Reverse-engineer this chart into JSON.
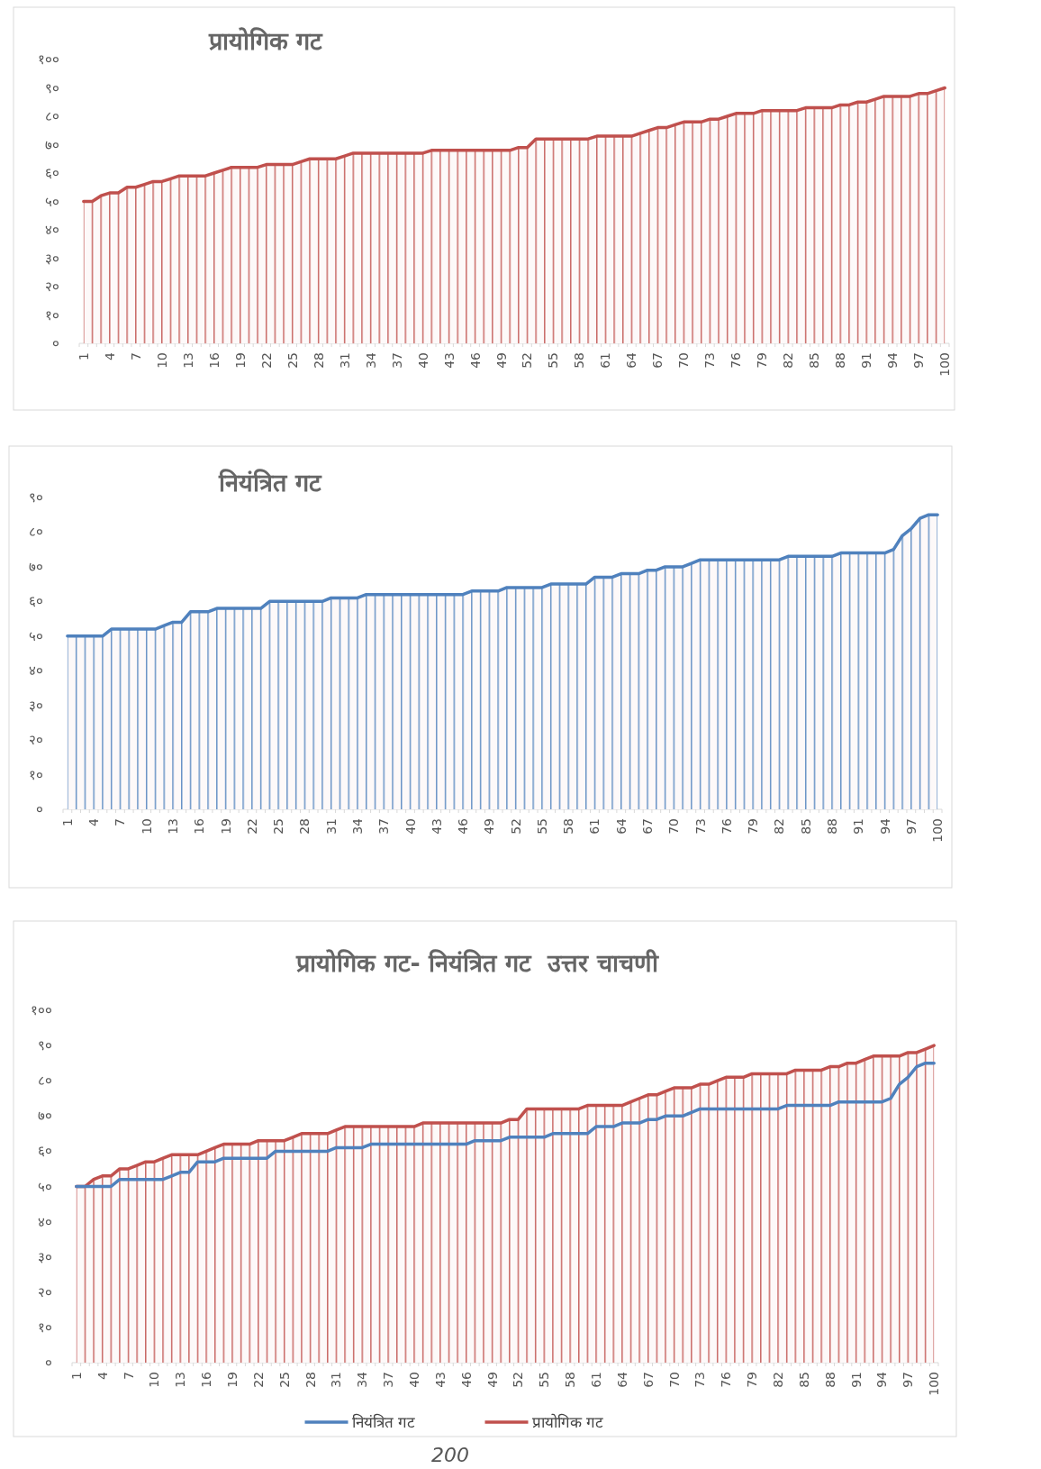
{
  "chart_data": [
    {
      "type": "area",
      "title": "प्रायोगिक गट",
      "categories": [
        "1",
        null,
        null,
        "4",
        null,
        null,
        "7",
        null,
        null,
        "10",
        null,
        null,
        "13",
        null,
        null,
        "16",
        null,
        null,
        "19",
        null,
        null,
        "22",
        null,
        null,
        "25",
        null,
        null,
        "28",
        null,
        null,
        "31",
        null,
        null,
        "34",
        null,
        null,
        "37",
        null,
        null,
        "40",
        null,
        null,
        "43",
        null,
        null,
        "46",
        null,
        null,
        "49",
        null,
        null,
        "52",
        null,
        null,
        "55",
        null,
        null,
        "58",
        null,
        null,
        "61",
        null,
        null,
        "64",
        null,
        null,
        "67",
        null,
        null,
        "70",
        null,
        null,
        "73",
        null,
        null,
        "76",
        null,
        null,
        "79",
        null,
        null,
        "82",
        null,
        null,
        "85",
        null,
        null,
        "88",
        null,
        null,
        "91",
        null,
        null,
        "94",
        null,
        null,
        "97",
        null,
        null,
        "100"
      ],
      "series": [
        {
          "color": "#c0504d",
          "values": [
            50,
            50,
            52,
            53,
            53,
            55,
            55,
            56,
            57,
            57,
            58,
            59,
            59,
            59,
            59,
            60,
            61,
            62,
            62,
            62,
            62,
            63,
            63,
            63,
            63,
            64,
            65,
            65,
            65,
            65,
            66,
            67,
            67,
            67,
            67,
            67,
            67,
            67,
            67,
            67,
            68,
            68,
            68,
            68,
            68,
            68,
            68,
            68,
            68,
            68,
            69,
            69,
            72,
            72,
            72,
            72,
            72,
            72,
            72,
            73,
            73,
            73,
            73,
            73,
            74,
            75,
            76,
            76,
            77,
            78,
            78,
            78,
            79,
            79,
            80,
            81,
            81,
            81,
            82,
            82,
            82,
            82,
            82,
            83,
            83,
            83,
            83,
            84,
            84,
            85,
            85,
            86,
            87,
            87,
            87,
            87,
            88,
            88,
            89,
            90
          ]
        }
      ],
      "ylim": [
        0,
        100
      ],
      "yticks": [
        {
          "value": 0,
          "label": "०"
        },
        {
          "value": 10,
          "label": "१०"
        },
        {
          "value": 20,
          "label": "२०"
        },
        {
          "value": 30,
          "label": "३०"
        },
        {
          "value": 40,
          "label": "४०"
        },
        {
          "value": 50,
          "label": "५०"
        },
        {
          "value": 60,
          "label": "६०"
        },
        {
          "value": 70,
          "label": "७०"
        },
        {
          "value": 80,
          "label": "८०"
        },
        {
          "value": 90,
          "label": "९०"
        },
        {
          "value": 100,
          "label": "१००"
        }
      ],
      "grid": false,
      "legend": false
    },
    {
      "type": "area",
      "title": "नियंत्रित गट",
      "categories": [
        "1",
        null,
        null,
        "4",
        null,
        null,
        "7",
        null,
        null,
        "10",
        null,
        null,
        "13",
        null,
        null,
        "16",
        null,
        null,
        "19",
        null,
        null,
        "22",
        null,
        null,
        "25",
        null,
        null,
        "28",
        null,
        null,
        "31",
        null,
        null,
        "34",
        null,
        null,
        "37",
        null,
        null,
        "40",
        null,
        null,
        "43",
        null,
        null,
        "46",
        null,
        null,
        "49",
        null,
        null,
        "52",
        null,
        null,
        "55",
        null,
        null,
        "58",
        null,
        null,
        "61",
        null,
        null,
        "64",
        null,
        null,
        "67",
        null,
        null,
        "70",
        null,
        null,
        "73",
        null,
        null,
        "76",
        null,
        null,
        "79",
        null,
        null,
        "82",
        null,
        null,
        "85",
        null,
        null,
        "88",
        null,
        null,
        "91",
        null,
        null,
        "94",
        null,
        null,
        "97",
        null,
        null,
        "100"
      ],
      "series": [
        {
          "color": "#4f81bd",
          "values": [
            50,
            50,
            50,
            50,
            50,
            52,
            52,
            52,
            52,
            52,
            52,
            53,
            54,
            54,
            57,
            57,
            57,
            58,
            58,
            58,
            58,
            58,
            58,
            60,
            60,
            60,
            60,
            60,
            60,
            60,
            61,
            61,
            61,
            61,
            62,
            62,
            62,
            62,
            62,
            62,
            62,
            62,
            62,
            62,
            62,
            62,
            63,
            63,
            63,
            63,
            64,
            64,
            64,
            64,
            64,
            65,
            65,
            65,
            65,
            65,
            67,
            67,
            67,
            68,
            68,
            68,
            69,
            69,
            70,
            70,
            70,
            71,
            72,
            72,
            72,
            72,
            72,
            72,
            72,
            72,
            72,
            72,
            73,
            73,
            73,
            73,
            73,
            73,
            74,
            74,
            74,
            74,
            74,
            74,
            75,
            79,
            81,
            84,
            85,
            85
          ]
        }
      ],
      "ylim": [
        0,
        90
      ],
      "yticks": [
        {
          "value": 0,
          "label": "०"
        },
        {
          "value": 10,
          "label": "१०"
        },
        {
          "value": 20,
          "label": "२०"
        },
        {
          "value": 30,
          "label": "३०"
        },
        {
          "value": 40,
          "label": "४०"
        },
        {
          "value": 50,
          "label": "५०"
        },
        {
          "value": 60,
          "label": "६०"
        },
        {
          "value": 70,
          "label": "७०"
        },
        {
          "value": 80,
          "label": "८०"
        },
        {
          "value": 90,
          "label": "९०"
        }
      ],
      "grid": false,
      "legend": false
    },
    {
      "type": "area",
      "title": "प्रायोगिक गट- नियंत्रित गट  उत्तर चाचणी",
      "categories": [
        "1",
        null,
        null,
        "4",
        null,
        null,
        "7",
        null,
        null,
        "10",
        null,
        null,
        "13",
        null,
        null,
        "16",
        null,
        null,
        "19",
        null,
        null,
        "22",
        null,
        null,
        "25",
        null,
        null,
        "28",
        null,
        null,
        "31",
        null,
        null,
        "34",
        null,
        null,
        "37",
        null,
        null,
        "40",
        null,
        null,
        "43",
        null,
        null,
        "46",
        null,
        null,
        "49",
        null,
        null,
        "52",
        null,
        null,
        "55",
        null,
        null,
        "58",
        null,
        null,
        "61",
        null,
        null,
        "64",
        null,
        null,
        "67",
        null,
        null,
        "70",
        null,
        null,
        "73",
        null,
        null,
        "76",
        null,
        null,
        "79",
        null,
        null,
        "82",
        null,
        null,
        "85",
        null,
        null,
        "88",
        null,
        null,
        "91",
        null,
        null,
        "94",
        null,
        null,
        "97",
        null,
        null,
        "100"
      ],
      "series": [
        {
          "name": "नियंत्रित गट",
          "type": "line",
          "color": "#4f81bd",
          "values": [
            50,
            50,
            50,
            50,
            50,
            52,
            52,
            52,
            52,
            52,
            52,
            53,
            54,
            54,
            57,
            57,
            57,
            58,
            58,
            58,
            58,
            58,
            58,
            60,
            60,
            60,
            60,
            60,
            60,
            60,
            61,
            61,
            61,
            61,
            62,
            62,
            62,
            62,
            62,
            62,
            62,
            62,
            62,
            62,
            62,
            62,
            63,
            63,
            63,
            63,
            64,
            64,
            64,
            64,
            64,
            65,
            65,
            65,
            65,
            65,
            67,
            67,
            67,
            68,
            68,
            68,
            69,
            69,
            70,
            70,
            70,
            71,
            72,
            72,
            72,
            72,
            72,
            72,
            72,
            72,
            72,
            72,
            73,
            73,
            73,
            73,
            73,
            73,
            74,
            74,
            74,
            74,
            74,
            74,
            75,
            79,
            81,
            84,
            85,
            85
          ]
        },
        {
          "name": "प्रायोगिक गट",
          "color": "#c0504d",
          "values": [
            50,
            50,
            52,
            53,
            53,
            55,
            55,
            56,
            57,
            57,
            58,
            59,
            59,
            59,
            59,
            60,
            61,
            62,
            62,
            62,
            62,
            63,
            63,
            63,
            63,
            64,
            65,
            65,
            65,
            65,
            66,
            67,
            67,
            67,
            67,
            67,
            67,
            67,
            67,
            67,
            68,
            68,
            68,
            68,
            68,
            68,
            68,
            68,
            68,
            68,
            69,
            69,
            72,
            72,
            72,
            72,
            72,
            72,
            72,
            73,
            73,
            73,
            73,
            73,
            74,
            75,
            76,
            76,
            77,
            78,
            78,
            78,
            79,
            79,
            80,
            81,
            81,
            81,
            82,
            82,
            82,
            82,
            82,
            83,
            83,
            83,
            83,
            84,
            84,
            85,
            85,
            86,
            87,
            87,
            87,
            87,
            88,
            88,
            89,
            90
          ]
        }
      ],
      "ylim": [
        0,
        100
      ],
      "yticks": [
        {
          "value": 0,
          "label": "०"
        },
        {
          "value": 10,
          "label": "१०"
        },
        {
          "value": 20,
          "label": "२०"
        },
        {
          "value": 30,
          "label": "३०"
        },
        {
          "value": 40,
          "label": "४०"
        },
        {
          "value": 50,
          "label": "५०"
        },
        {
          "value": 60,
          "label": "६०"
        },
        {
          "value": 70,
          "label": "७०"
        },
        {
          "value": 80,
          "label": "८०"
        },
        {
          "value": 90,
          "label": "९०"
        },
        {
          "value": 100,
          "label": "१००"
        }
      ],
      "grid": false,
      "legend": "bottom",
      "annotations": [
        "200"
      ]
    }
  ]
}
